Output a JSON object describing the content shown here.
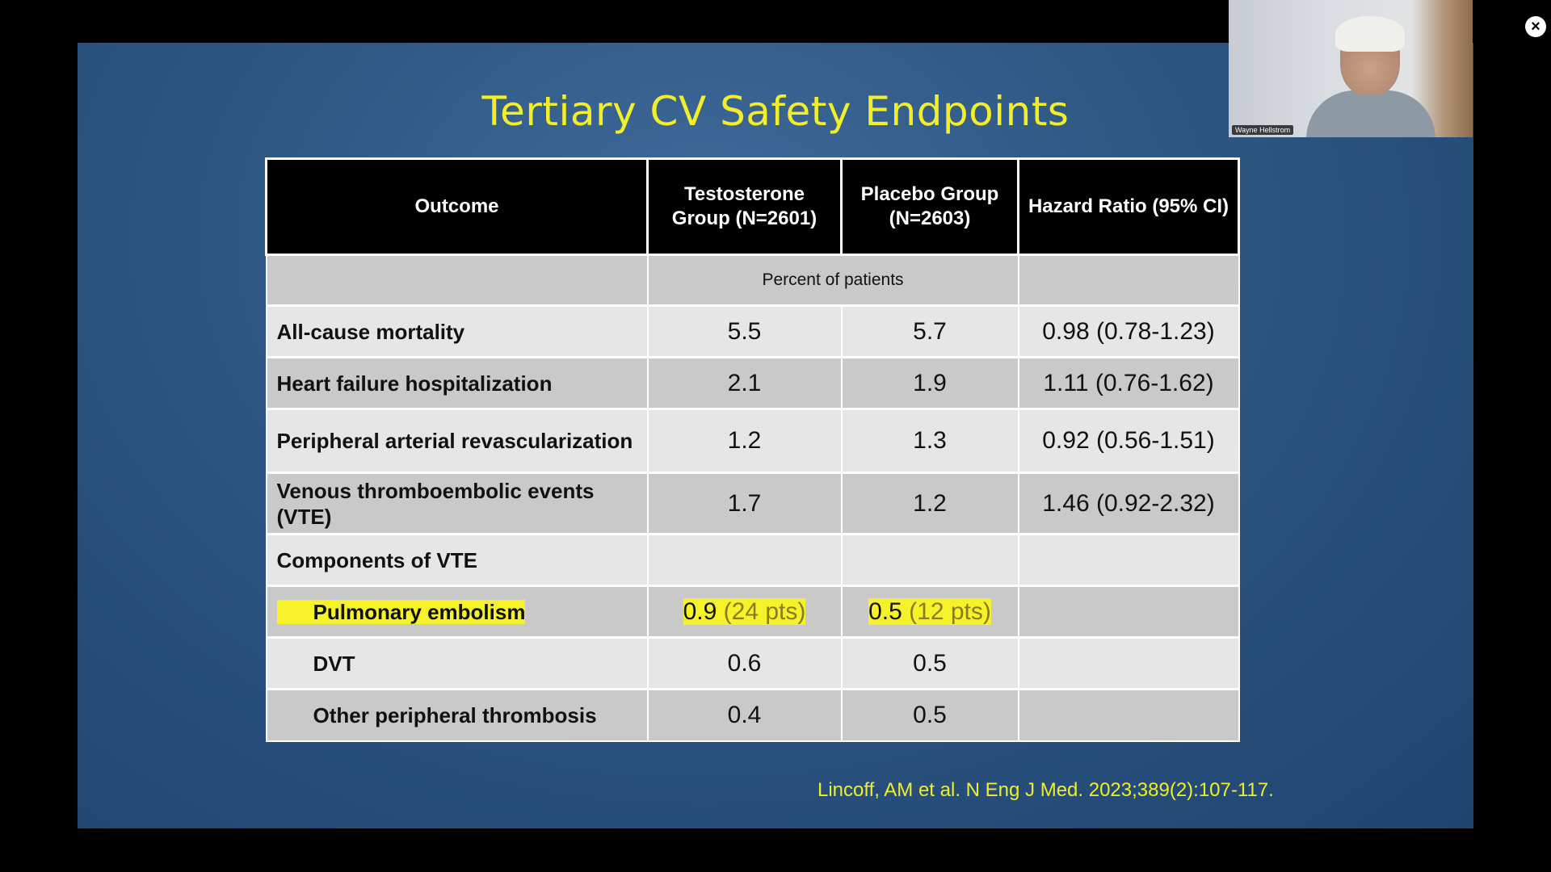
{
  "slide": {
    "title": "Tertiary CV Safety Endpoints",
    "citation": "Lincoff, AM et al. N Eng J Med. 2023;389(2):107-117."
  },
  "table": {
    "headers": {
      "outcome": "Outcome",
      "testosterone": "Testosterone Group (N=2601)",
      "placebo": "Placebo Group (N=2603)",
      "hazard": "Hazard Ratio (95% CI)"
    },
    "subheader": "Percent of patients",
    "rows": [
      {
        "outcome": "All-cause mortality",
        "testosterone": "5.5",
        "placebo": "5.7",
        "hazard": "0.98 (0.78-1.23)"
      },
      {
        "outcome": "Heart failure hospitalization",
        "testosterone": "2.1",
        "placebo": "1.9",
        "hazard": "1.11 (0.76-1.62)"
      },
      {
        "outcome": "Peripheral arterial revascularization",
        "testosterone": "1.2",
        "placebo": "1.3",
        "hazard": "0.92 (0.56-1.51)"
      },
      {
        "outcome": "Venous thromboembolic events (VTE)",
        "testosterone": "1.7",
        "placebo": "1.2",
        "hazard": "1.46 (0.92-2.32)"
      },
      {
        "outcome": "Components of  VTE",
        "testosterone": "",
        "placebo": "",
        "hazard": ""
      },
      {
        "outcome": "Pulmonary embolism",
        "testosterone": "0.9",
        "testosterone_pts": "(24 pts)",
        "placebo": "0.5",
        "placebo_pts": "(12 pts)",
        "hazard": ""
      },
      {
        "outcome": "DVT",
        "testosterone": "0.6",
        "placebo": "0.5",
        "hazard": ""
      },
      {
        "outcome": "Other peripheral thrombosis",
        "testosterone": "0.4",
        "placebo": "0.5",
        "hazard": ""
      }
    ]
  },
  "video": {
    "participant_name": "Wayne Hellstrom",
    "close_icon": "close-icon"
  },
  "colors": {
    "title": "#f2ee2a",
    "highlight": "#f5f22a",
    "header_bg": "#000000",
    "slide_bg": "#2d5682"
  }
}
